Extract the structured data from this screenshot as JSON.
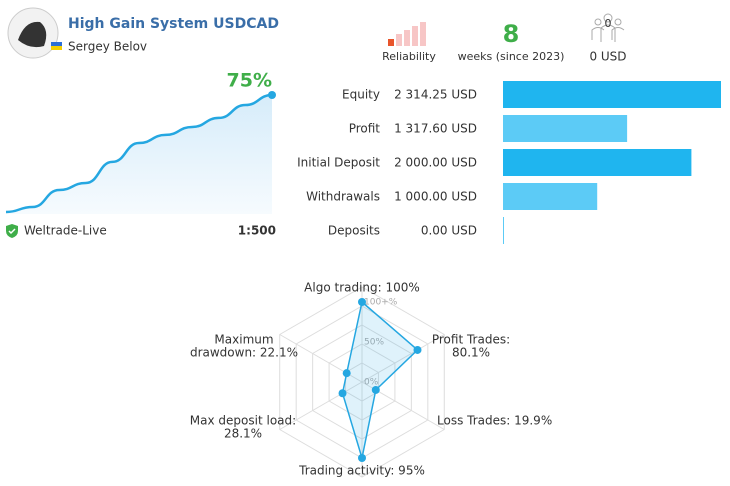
{
  "header": {
    "title": "High Gain System USDCAD",
    "author": "Sergey Belov"
  },
  "stats": {
    "reliability_label": "Reliability",
    "weeks": "8",
    "weeks_label": "weeks (since 2023)",
    "subscribers": "0",
    "subscription": "0 USD"
  },
  "growth": {
    "label": "75%",
    "values": [
      0,
      3.2,
      14.1,
      18.6,
      32.1,
      44.2,
      49.4,
      54.5,
      60.3,
      68.6,
      75
    ],
    "broker": "Weltrade-Live",
    "leverage": "1:500"
  },
  "balance": {
    "categories": [
      "Equity",
      "Profit",
      "Initial Deposit",
      "Withdrawals",
      "Deposits"
    ],
    "values": [
      2314.25,
      1317.6,
      2000,
      1000,
      0
    ],
    "value_labels": [
      "2 314.25 USD",
      "1 317.60 USD",
      "2 000.00 USD",
      "1 000.00 USD",
      "0.00 USD"
    ],
    "colors": [
      "#1fb5ef",
      "#5ccbf6",
      "#1fb5ef",
      "#5ccbf6",
      "#5ccbf6"
    ]
  },
  "radar": {
    "labels": [
      [
        "Algo trading: 100%"
      ],
      [
        "Profit Trades:",
        "80.1%"
      ],
      [
        "Loss Trades: 19.9%"
      ],
      [
        "Trading activity: 95%"
      ],
      [
        "Max deposit load:",
        "28.1%"
      ],
      [
        "Maximum",
        "drawdown: 22.1%"
      ]
    ],
    "values": [
      100,
      80.1,
      19.9,
      95,
      28.1,
      22.1
    ],
    "ticks": [
      {
        "value": 0,
        "label": "0%"
      },
      {
        "value": 50,
        "label": "50%"
      },
      {
        "value": 100,
        "label": "100+%"
      }
    ],
    "color": "#25a7e1"
  }
}
